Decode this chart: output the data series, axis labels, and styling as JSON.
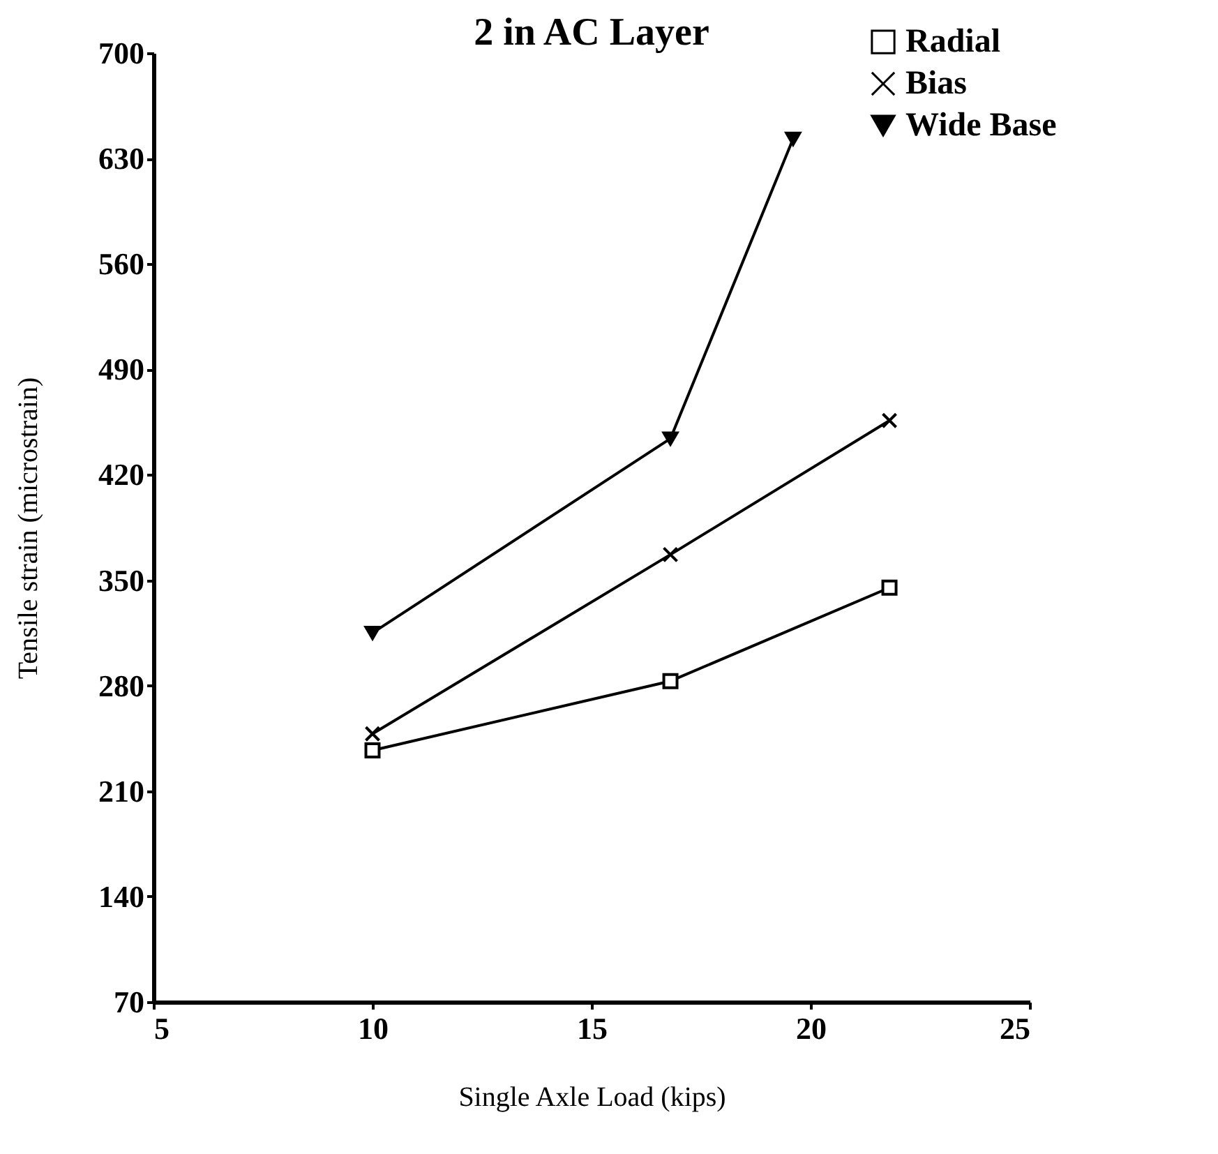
{
  "chart_data": {
    "type": "line",
    "title": "2 in AC Layer",
    "xlabel": "Single Axle Load (kips)",
    "ylabel": "Tensile strain (microstrain)",
    "xlim": [
      5,
      25
    ],
    "xticks": [
      5,
      10,
      15,
      20,
      25
    ],
    "ylim": [
      70,
      700
    ],
    "yticks": [
      70,
      140,
      210,
      280,
      350,
      420,
      490,
      560,
      630,
      700
    ],
    "grid": false,
    "legend": "top right",
    "line_style": "solid",
    "series": [
      {
        "name": "Radial",
        "color": "#000000",
        "marker": "square",
        "x": [
          10,
          16.8,
          21.8
        ],
        "values": [
          237,
          283,
          345
        ]
      },
      {
        "name": "Bias",
        "color": "#000000",
        "marker": "cross",
        "x": [
          10,
          16.8,
          21.8
        ],
        "values": [
          248,
          367,
          456
        ]
      },
      {
        "name": "Wide Base",
        "color": "#000000",
        "marker": "triangle-down",
        "x": [
          10,
          16.8,
          19.6
        ],
        "values": [
          315,
          444,
          643
        ]
      }
    ]
  }
}
